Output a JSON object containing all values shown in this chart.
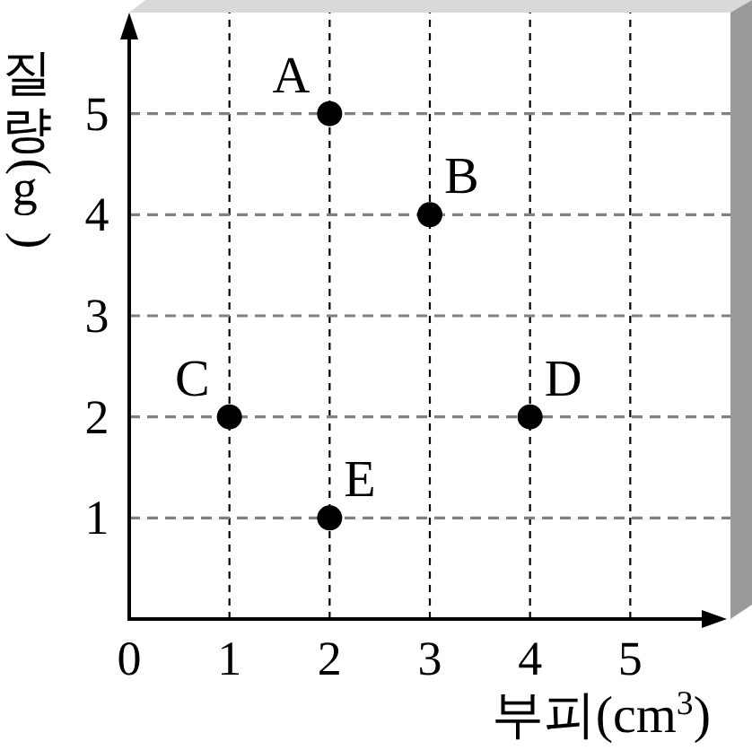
{
  "chart_data": {
    "type": "scatter",
    "xlabel": "부피(cm$^{3}$)",
    "ylabel": "질량(g)",
    "x": [
      2,
      3,
      1,
      4,
      2
    ],
    "values": [
      5,
      4,
      2,
      2,
      1
    ],
    "color": "#000000",
    "marker": "circle",
    "xlim": [
      0,
      6
    ],
    "ylim": [
      0,
      6
    ],
    "xticks": [
      0,
      1,
      2,
      3,
      4,
      5
    ],
    "yticks": [
      1,
      2,
      3,
      4,
      5
    ],
    "grid": true,
    "annotations": [
      {
        "text": "A",
        "x": 2,
        "y": 5
      },
      {
        "text": "B",
        "x": 3,
        "y": 4
      },
      {
        "text": "C",
        "x": 1,
        "y": 2
      },
      {
        "text": "D",
        "x": 4,
        "y": 2
      },
      {
        "text": "E",
        "x": 2,
        "y": 1
      }
    ]
  }
}
